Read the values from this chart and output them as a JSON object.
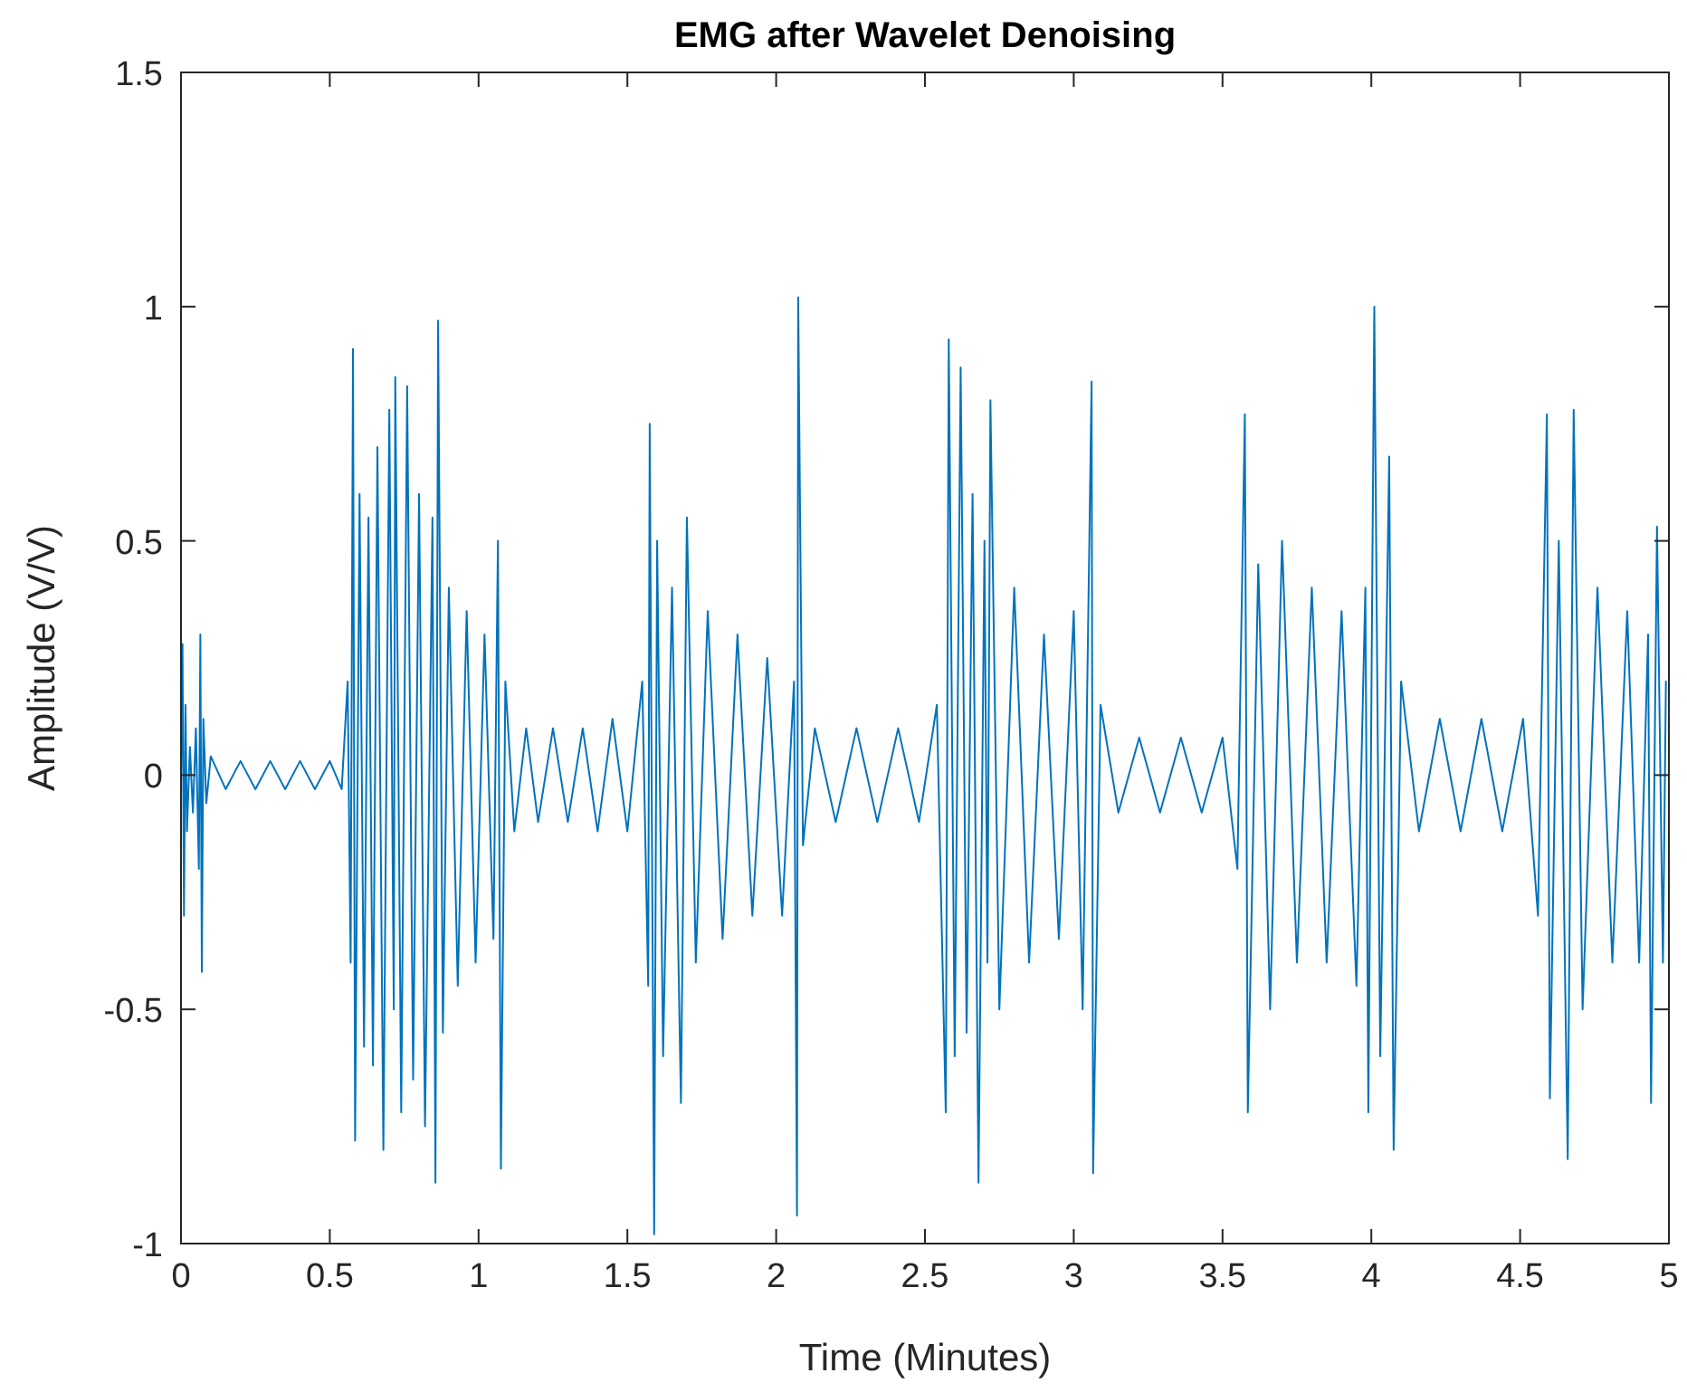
{
  "chart_data": {
    "type": "line",
    "title": "EMG after Wavelet Denoising",
    "xlabel": "Time (Minutes)",
    "ylabel": "Amplitude (V/V)",
    "xlim": [
      0,
      5
    ],
    "ylim": [
      -1,
      1.5
    ],
    "xticks": [
      0,
      0.5,
      1,
      1.5,
      2,
      2.5,
      3,
      3.5,
      4,
      4.5,
      5
    ],
    "yticks": [
      -1,
      -0.5,
      0,
      0.5,
      1,
      1.5
    ],
    "x": [
      0,
      0.005,
      0.01,
      0.015,
      0.02,
      0.03,
      0.04,
      0.05,
      0.06,
      0.065,
      0.07,
      0.075,
      0.085,
      0.1,
      0.15,
      0.2,
      0.25,
      0.3,
      0.35,
      0.4,
      0.45,
      0.5,
      0.54,
      0.56,
      0.57,
      0.578,
      0.585,
      0.6,
      0.615,
      0.63,
      0.645,
      0.66,
      0.68,
      0.7,
      0.715,
      0.72,
      0.74,
      0.76,
      0.78,
      0.8,
      0.82,
      0.845,
      0.855,
      0.864,
      0.88,
      0.9,
      0.93,
      0.96,
      0.99,
      1.02,
      1.05,
      1.065,
      1.075,
      1.09,
      1.12,
      1.16,
      1.2,
      1.25,
      1.3,
      1.35,
      1.4,
      1.45,
      1.5,
      1.55,
      1.57,
      1.575,
      1.59,
      1.6,
      1.62,
      1.65,
      1.68,
      1.7,
      1.73,
      1.77,
      1.82,
      1.87,
      1.92,
      1.97,
      2.02,
      2.06,
      2.07,
      2.074,
      2.09,
      2.13,
      2.2,
      2.27,
      2.34,
      2.41,
      2.48,
      2.54,
      2.57,
      2.58,
      2.6,
      2.62,
      2.64,
      2.66,
      2.68,
      2.7,
      2.71,
      2.72,
      2.75,
      2.8,
      2.85,
      2.9,
      2.95,
      3,
      3.03,
      3.06,
      3.065,
      3.09,
      3.15,
      3.22,
      3.29,
      3.36,
      3.43,
      3.5,
      3.55,
      3.575,
      3.585,
      3.62,
      3.66,
      3.7,
      3.75,
      3.8,
      3.85,
      3.9,
      3.95,
      3.98,
      3.99,
      4.01,
      4.03,
      4.06,
      4.075,
      4.1,
      4.16,
      4.23,
      4.3,
      4.37,
      4.44,
      4.51,
      4.56,
      4.59,
      4.6,
      4.63,
      4.66,
      4.68,
      4.71,
      4.76,
      4.81,
      4.86,
      4.9,
      4.93,
      4.94,
      4.96,
      4.98,
      4.99
    ],
    "series": [
      {
        "color": "#0072bd",
        "values": [
          0,
          0.28,
          -0.3,
          0.15,
          -0.12,
          0.06,
          -0.08,
          0.1,
          -0.2,
          0.3,
          -0.42,
          0.12,
          -0.06,
          0.04,
          -0.03,
          0.03,
          -0.03,
          0.03,
          -0.03,
          0.03,
          -0.03,
          0.03,
          -0.03,
          0.2,
          -0.4,
          0.91,
          -0.78,
          0.6,
          -0.58,
          0.55,
          -0.62,
          0.7,
          -0.8,
          0.78,
          -0.5,
          0.85,
          -0.72,
          0.83,
          -0.65,
          0.6,
          -0.75,
          0.55,
          -0.87,
          0.97,
          -0.55,
          0.4,
          -0.45,
          0.35,
          -0.4,
          0.3,
          -0.35,
          0.5,
          -0.84,
          0.2,
          -0.12,
          0.1,
          -0.1,
          0.1,
          -0.1,
          0.1,
          -0.12,
          0.12,
          -0.12,
          0.2,
          -0.45,
          0.75,
          -0.98,
          0.5,
          -0.6,
          0.4,
          -0.7,
          0.55,
          -0.4,
          0.35,
          -0.35,
          0.3,
          -0.3,
          0.25,
          -0.3,
          0.2,
          -0.94,
          1.02,
          -0.15,
          0.1,
          -0.1,
          0.1,
          -0.1,
          0.1,
          -0.1,
          0.15,
          -0.72,
          0.93,
          -0.6,
          0.87,
          -0.55,
          0.6,
          -0.87,
          0.5,
          -0.4,
          0.8,
          -0.5,
          0.4,
          -0.4,
          0.3,
          -0.35,
          0.35,
          -0.5,
          0.84,
          -0.85,
          0.15,
          -0.08,
          0.08,
          -0.08,
          0.08,
          -0.08,
          0.08,
          -0.2,
          0.77,
          -0.72,
          0.45,
          -0.5,
          0.5,
          -0.4,
          0.4,
          -0.4,
          0.35,
          -0.45,
          0.4,
          -0.72,
          1,
          -0.6,
          0.68,
          -0.8,
          0.2,
          -0.12,
          0.12,
          -0.12,
          0.12,
          -0.12,
          0.12,
          -0.3,
          0.77,
          -0.69,
          0.5,
          -0.82,
          0.78,
          -0.5,
          0.4,
          -0.4,
          0.35,
          -0.4,
          0.3,
          -0.7,
          0.53,
          -0.4,
          0.2
        ]
      }
    ]
  }
}
